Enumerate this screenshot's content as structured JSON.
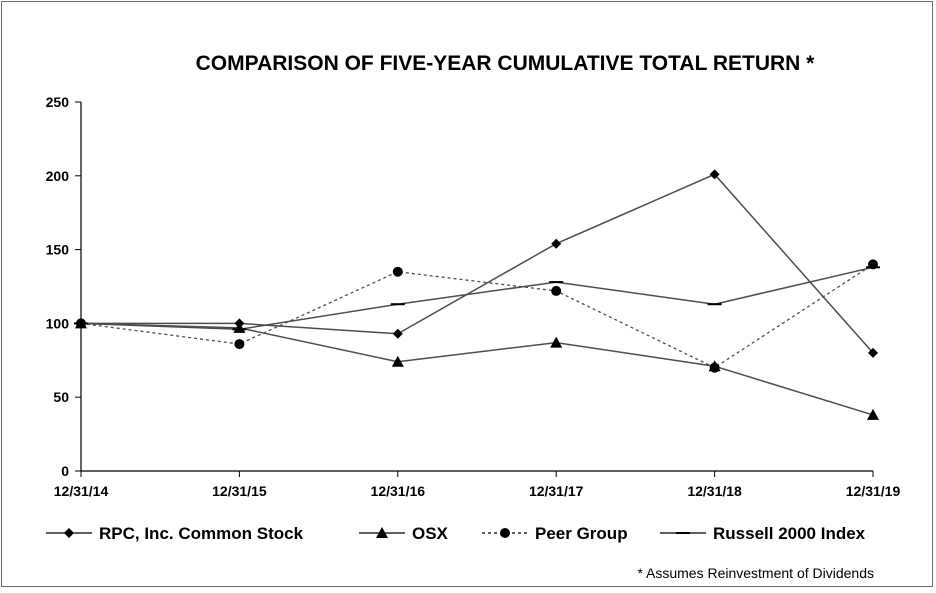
{
  "chart_data": {
    "type": "line",
    "title": "COMPARISON OF FIVE-YEAR CUMULATIVE TOTAL RETURN *",
    "xlabel": "",
    "ylabel": "",
    "categories": [
      "12/31/14",
      "12/31/15",
      "12/31/16",
      "12/31/17",
      "12/31/18",
      "12/31/19"
    ],
    "ylim": [
      0,
      250
    ],
    "yticks": [
      0,
      50,
      100,
      150,
      200,
      250
    ],
    "grid": false,
    "legend_position": "bottom",
    "series": [
      {
        "name": "RPC, Inc. Common Stock",
        "marker": "diamond",
        "dash": "solid",
        "color": "#4d4d4d",
        "values": [
          100,
          100,
          93,
          154,
          201,
          80
        ]
      },
      {
        "name": "OSX",
        "marker": "triangle",
        "dash": "solid",
        "color": "#4d4d4d",
        "values": [
          100,
          97,
          74,
          87,
          71,
          38
        ]
      },
      {
        "name": "Peer Group",
        "marker": "circle",
        "dash": "dotted",
        "color": "#4d4d4d",
        "values": [
          100,
          86,
          135,
          122,
          70,
          140
        ]
      },
      {
        "name": "Russell 2000 Index",
        "marker": "dash",
        "dash": "solid",
        "color": "#4d4d4d",
        "values": [
          100,
          96,
          113,
          128,
          113,
          138
        ]
      }
    ],
    "footnote": "* Assumes Reinvestment  of Dividends"
  }
}
